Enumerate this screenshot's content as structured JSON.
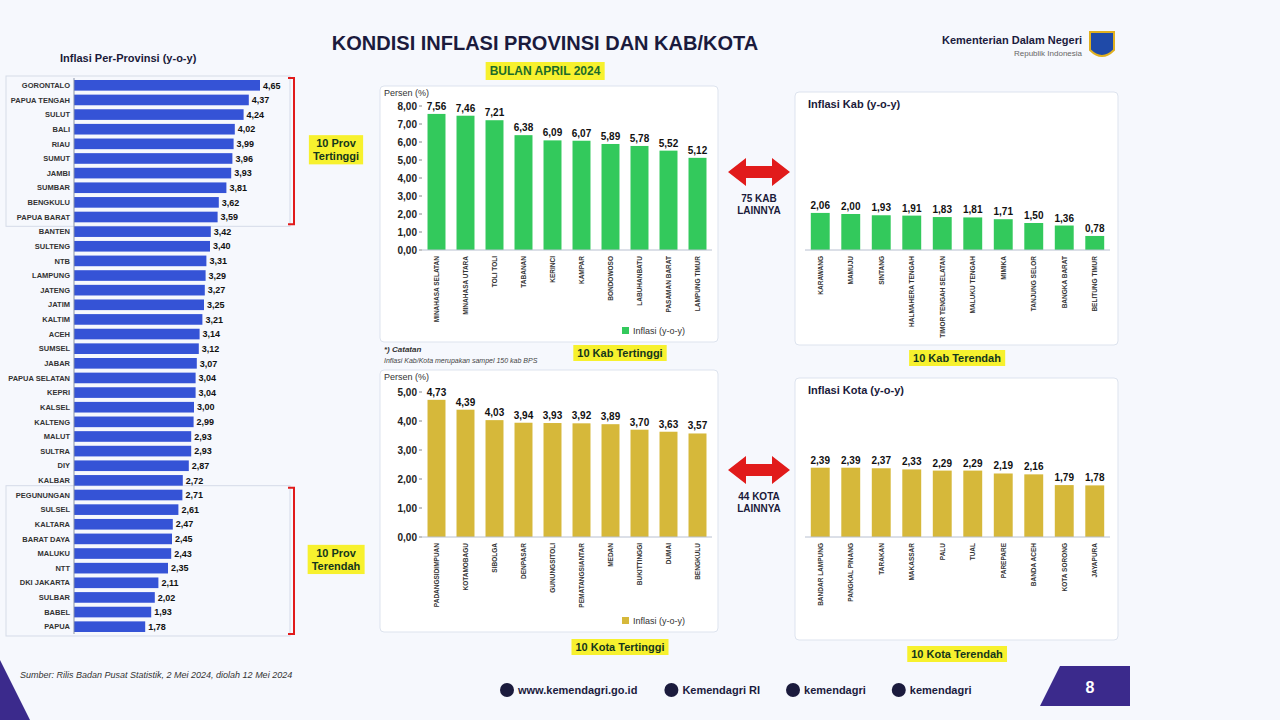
{
  "page": {
    "title": "KONDISI INFLASI PROVINSI DAN KAB/KOTA",
    "subtitle": "BULAN APRIL 2024",
    "ministry": "Kementerian Dalam Negeri",
    "ministry_sub": "Republik Indonesia",
    "note_title": "*) Catatan",
    "note_text": "Inflasi Kab/Kota merupakan sampel 150 kab BPS",
    "source": "Sumber: Rilis Badan Pusat Statistik, 2 Mei 2024, diolah 12 Mei 2024",
    "links": [
      "www.kemendagri.go.id",
      "Kemendagri RI",
      "kemendagri",
      "kemendagri"
    ],
    "page_number": 8
  },
  "chart_data": [
    {
      "type": "bar",
      "orientation": "horizontal",
      "title": "Inflasi Per-Provinsi (y-o-y)",
      "categories": [
        "GORONTALO",
        "PAPUA TENGAH",
        "SULUT",
        "BALI",
        "RIAU",
        "SUMUT",
        "JAMBI",
        "SUMBAR",
        "BENGKULU",
        "PAPUA BARAT",
        "BANTEN",
        "SULTENG",
        "NTB",
        "LAMPUNG",
        "JATENG",
        "JATIM",
        "KALTIM",
        "ACEH",
        "SUMSEL",
        "JABAR",
        "PAPUA SELATAN",
        "KEPRI",
        "KALSEL",
        "KALTENG",
        "MALUT",
        "SULTRA",
        "DIY",
        "KALBAR",
        "PEGUNUNGAN",
        "SULSEL",
        "KALTARA",
        "BARAT DAYA",
        "MALUKU",
        "NTT",
        "DKI JAKARTA",
        "SULBAR",
        "BABEL",
        "PAPUA"
      ],
      "values": [
        4.65,
        4.37,
        4.24,
        4.02,
        3.99,
        3.96,
        3.93,
        3.81,
        3.62,
        3.59,
        3.42,
        3.4,
        3.31,
        3.29,
        3.27,
        3.25,
        3.21,
        3.14,
        3.12,
        3.07,
        3.04,
        3.04,
        3.0,
        2.99,
        2.93,
        2.93,
        2.87,
        2.72,
        2.71,
        2.61,
        2.47,
        2.45,
        2.43,
        2.35,
        2.11,
        2.02,
        1.93,
        1.78
      ],
      "value_labels": [
        "4,65",
        "4,37",
        "4,24",
        "4,02",
        "3,99",
        "3,96",
        "3,93",
        "3,81",
        "3,62",
        "3,59",
        "3,42",
        "3,40",
        "3,31",
        "3,29",
        "3,27",
        "3,25",
        "3,21",
        "3,14",
        "3,12",
        "3,07",
        "3,04",
        "3,04",
        "3,00",
        "2,99",
        "2,93",
        "2,93",
        "2,87",
        "2,72",
        "2,71",
        "2,61",
        "2,47",
        "2,45",
        "2,43",
        "2,35",
        "2,11",
        "2,02",
        "1,93",
        "1,78"
      ],
      "color": "#3553d6",
      "xlim": [
        0,
        5
      ],
      "tick_labels": "y",
      "data_labels": true,
      "annotations": [
        "10 Prov Tertinggi",
        "10 Prov Terendah"
      ]
    },
    {
      "type": "bar",
      "title": "10 Kab Tertinggi",
      "y_label": "Persen (%)",
      "categories": [
        "MINAHASA SELATAN",
        "MINAHASA UTARA",
        "TOLI TOLI",
        "TABANAN",
        "KERINCI",
        "KAMPAR",
        "BONDOWOSO",
        "LABUHANBATU",
        "PASAMAN BARAT",
        "LAMPUNG TIMUR"
      ],
      "series": [
        {
          "name": "Inflasi (y-o-y)",
          "color": "#33c95c",
          "values": [
            7.56,
            7.46,
            7.21,
            6.38,
            6.09,
            6.07,
            5.89,
            5.78,
            5.52,
            5.12
          ],
          "value_labels": [
            "7,56",
            "7,46",
            "7,21",
            "6,38",
            "6,09",
            "6,07",
            "5,89",
            "5,78",
            "5,52",
            "5,12"
          ]
        }
      ],
      "ylim": [
        0,
        8
      ],
      "yticks": [
        {
          "value": 0,
          "label": "0,00"
        },
        {
          "value": 1,
          "label": "1,00"
        },
        {
          "value": 2,
          "label": "2,00"
        },
        {
          "value": 3,
          "label": "3,00"
        },
        {
          "value": 4,
          "label": "4,00"
        },
        {
          "value": 5,
          "label": "5,00"
        },
        {
          "value": 6,
          "label": "6,00"
        },
        {
          "value": 7,
          "label": "7,00"
        },
        {
          "value": 8,
          "label": "8,00"
        }
      ],
      "legend": "bottom",
      "data_labels": true
    },
    {
      "type": "bar",
      "title": "Inflasi Kab (y-o-y)",
      "subtitle": "10 Kab Terendah",
      "annotation": "75 KAB LAINNYA",
      "categories": [
        "KARAWANG",
        "MAMUJU",
        "SINTANG",
        "HALMAHERA TENGAH",
        "TIMOR TENGAH SELATAN",
        "MALUKU TENGAH",
        "MIMIKA",
        "TANJUNG SELOR",
        "BANGKA BARAT",
        "BELITUNG TIMUR"
      ],
      "values": [
        2.06,
        2.0,
        1.93,
        1.91,
        1.83,
        1.81,
        1.71,
        1.5,
        1.36,
        0.78
      ],
      "value_labels": [
        "2,06",
        "2,00",
        "1,93",
        "1,91",
        "1,83",
        "1,81",
        "1,71",
        "1,50",
        "1,36",
        "0,78"
      ],
      "color": "#33c95c",
      "ylim": [
        0,
        8
      ],
      "tick_labels": "x",
      "data_labels": true
    },
    {
      "type": "bar",
      "title": "10 Kota Tertinggi",
      "y_label": "Persen (%)",
      "categories": [
        "PADANGSIDIMPUAN",
        "KOTAMOBAGU",
        "SIBOLGA",
        "DENPASAR",
        "GUNUNGSITOLI",
        "PEMATANGSIANTAR",
        "MEDAN",
        "BUKITTINGGI",
        "DUMAI",
        "BENGKULU"
      ],
      "series": [
        {
          "name": "Inflasi (y-o-y)",
          "color": "#d6b83a",
          "values": [
            4.73,
            4.39,
            4.03,
            3.94,
            3.93,
            3.92,
            3.89,
            3.7,
            3.63,
            3.57
          ],
          "value_labels": [
            "4,73",
            "4,39",
            "4,03",
            "3,94",
            "3,93",
            "3,92",
            "3,89",
            "3,70",
            "3,63",
            "3,57"
          ]
        }
      ],
      "ylim": [
        0,
        5
      ],
      "yticks": [
        {
          "value": 0,
          "label": "0,00"
        },
        {
          "value": 1,
          "label": "1,00"
        },
        {
          "value": 2,
          "label": "2,00"
        },
        {
          "value": 3,
          "label": "3,00"
        },
        {
          "value": 4,
          "label": "4,00"
        },
        {
          "value": 5,
          "label": "5,00"
        }
      ],
      "legend": "bottom",
      "data_labels": true
    },
    {
      "type": "bar",
      "title": "Inflasi Kota (y-o-y)",
      "subtitle": "10 Kota Terendah",
      "annotation": "44 KOTA LAINNYA",
      "categories": [
        "BANDAR LAMPUNG",
        "PANGKAL PINANG",
        "TARAKAN",
        "MAKASSAR",
        "PALU",
        "TUAL",
        "PAREPARE",
        "BANDA ACEH",
        "KOTA SORONG",
        "JAYAPURA"
      ],
      "values": [
        2.39,
        2.39,
        2.37,
        2.33,
        2.29,
        2.29,
        2.19,
        2.16,
        1.79,
        1.78
      ],
      "value_labels": [
        "2,39",
        "2,39",
        "2,37",
        "2,33",
        "2,29",
        "2,29",
        "2,19",
        "2,16",
        "1,79",
        "1,78"
      ],
      "color": "#d6b83a",
      "ylim": [
        0,
        5
      ],
      "tick_labels": "x",
      "data_labels": true
    }
  ]
}
